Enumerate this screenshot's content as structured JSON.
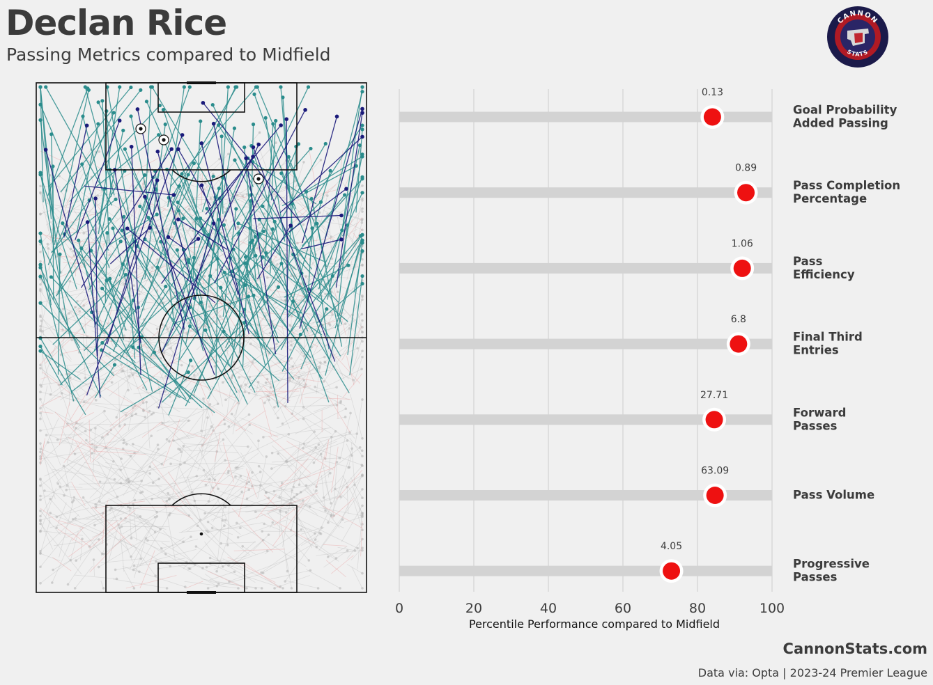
{
  "header": {
    "title": "Declan Rice",
    "subtitle": "Passing Metrics compared to Midfield"
  },
  "logo": {
    "top_text": "CANNON",
    "bottom_text": "STATS",
    "colors": {
      "outer": "#1b1a4a",
      "ring": "#b01a24",
      "inner": "#2a2566",
      "cannon": "#d8d8d8"
    }
  },
  "pitch": {
    "line_color": "#111111",
    "colors": {
      "progressive": "#2a8c8c",
      "final_third": "#1a1a7a",
      "other": "#b5b5b5",
      "incomplete": "#e8a0a0"
    }
  },
  "chart_data": {
    "type": "lollipop",
    "title": "",
    "xlabel": "Percentile Performance compared to Midfield",
    "xlim": [
      0,
      100
    ],
    "xticks": [
      0,
      20,
      40,
      60,
      80,
      100
    ],
    "grid": true,
    "bar_color": "#d3d3d3",
    "marker_color": "#ee1111",
    "items": [
      {
        "label_lines": [
          "Goal Probability",
          "Added Passing"
        ],
        "percentile": 84,
        "value_label": "0.13"
      },
      {
        "label_lines": [
          "Pass Completion",
          "Percentage"
        ],
        "percentile": 93,
        "value_label": "0.89"
      },
      {
        "label_lines": [
          "Pass",
          "Efficiency"
        ],
        "percentile": 92,
        "value_label": "1.06"
      },
      {
        "label_lines": [
          "Final Third",
          "Entries"
        ],
        "percentile": 91,
        "value_label": "6.8"
      },
      {
        "label_lines": [
          "Forward",
          "Passes"
        ],
        "percentile": 84.5,
        "value_label": "27.71"
      },
      {
        "label_lines": [
          "Pass Volume"
        ],
        "percentile": 84.7,
        "value_label": "63.09"
      },
      {
        "label_lines": [
          "Progressive",
          "Passes"
        ],
        "percentile": 73,
        "value_label": "4.05"
      }
    ]
  },
  "footer": {
    "site": "CannonStats.com",
    "source": "Data via: Opta | 2023-24 Premier League"
  }
}
